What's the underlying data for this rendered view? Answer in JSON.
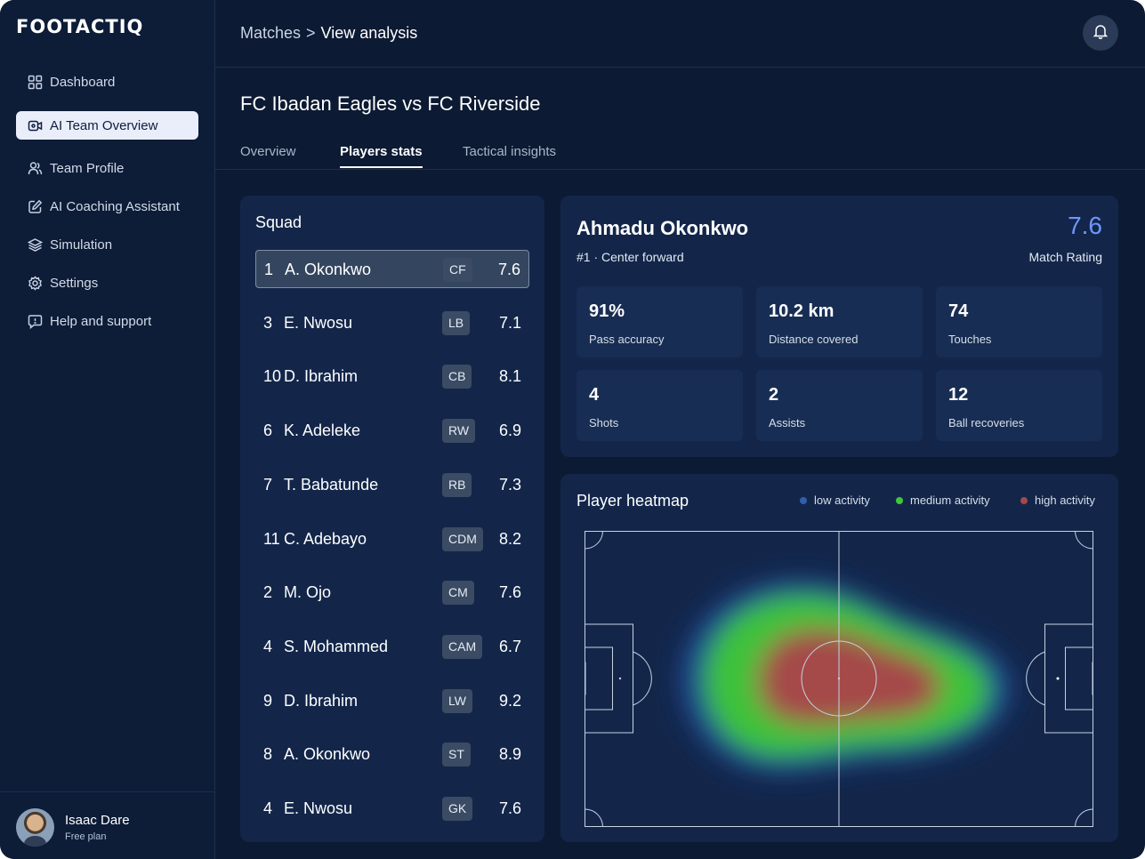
{
  "brand": "FOOTACTIQ",
  "sidebar": {
    "items": [
      {
        "label": "Dashboard",
        "icon": "grid-icon"
      },
      {
        "label": "AI Team Overview",
        "icon": "video-icon",
        "active": true
      },
      {
        "label": "Team Profile",
        "icon": "users-icon"
      },
      {
        "label": "AI Coaching Assistant",
        "icon": "edit-icon"
      },
      {
        "label": "Simulation",
        "icon": "layers-icon"
      },
      {
        "label": "Settings",
        "icon": "gear-icon"
      },
      {
        "label": "Help and support",
        "icon": "help-icon"
      }
    ]
  },
  "user": {
    "name": "Isaac Dare",
    "plan": "Free plan"
  },
  "header": {
    "crumb_parent": "Matches",
    "crumb_sep": ">",
    "crumb_current": "View analysis"
  },
  "match": {
    "title": "FC Ibadan Eagles vs FC Riverside"
  },
  "tabs": [
    {
      "label": "Overview",
      "active": false
    },
    {
      "label": "Players stats",
      "active": true
    },
    {
      "label": "Tactical insights",
      "active": false
    }
  ],
  "squad": {
    "title": "Squad",
    "players": [
      {
        "num": "1",
        "name": "A. Okonkwo",
        "pos": "CF",
        "rating": "7.6",
        "selected": true
      },
      {
        "num": "3",
        "name": "E. Nwosu",
        "pos": "LB",
        "rating": "7.1"
      },
      {
        "num": "10",
        "name": "D. Ibrahim",
        "pos": "CB",
        "rating": "8.1"
      },
      {
        "num": "6",
        "name": "K. Adeleke",
        "pos": "RW",
        "rating": "6.9"
      },
      {
        "num": "7",
        "name": "T. Babatunde",
        "pos": "RB",
        "rating": "7.3"
      },
      {
        "num": "11",
        "name": "C. Adebayo",
        "pos": "CDM",
        "rating": "8.2"
      },
      {
        "num": "2",
        "name": "M. Ojo",
        "pos": "CM",
        "rating": "7.6"
      },
      {
        "num": "4",
        "name": "S. Mohammed",
        "pos": "CAM",
        "rating": "6.7"
      },
      {
        "num": "9",
        "name": "D. Ibrahim",
        "pos": "LW",
        "rating": "9.2"
      },
      {
        "num": "8",
        "name": "A. Okonkwo",
        "pos": "ST",
        "rating": "8.9"
      },
      {
        "num": "4",
        "name": "E. Nwosu",
        "pos": "GK",
        "rating": "7.6"
      }
    ]
  },
  "player": {
    "name": "Ahmadu Okonkwo",
    "subtitle": "#1 · Center forward",
    "rating": "7.6",
    "rating_label": "Match Rating",
    "stats": [
      {
        "value": "91%",
        "label": "Pass accuracy"
      },
      {
        "value": "10.2 km",
        "label": "Distance covered"
      },
      {
        "value": "74",
        "label": "Touches"
      },
      {
        "value": "4",
        "label": "Shots"
      },
      {
        "value": "2",
        "label": "Assists"
      },
      {
        "value": "12",
        "label": "Ball recoveries"
      }
    ]
  },
  "heatmap": {
    "title": "Player heatmap",
    "legend": [
      {
        "label": "low activity",
        "color": "#2f5fae"
      },
      {
        "label": "medium activity",
        "color": "#3fc73a"
      },
      {
        "label": "high activity",
        "color": "#a44848"
      }
    ]
  },
  "colors": {
    "accent": "#6e96ff",
    "background": "#0c1a33",
    "card": "#13264a"
  }
}
